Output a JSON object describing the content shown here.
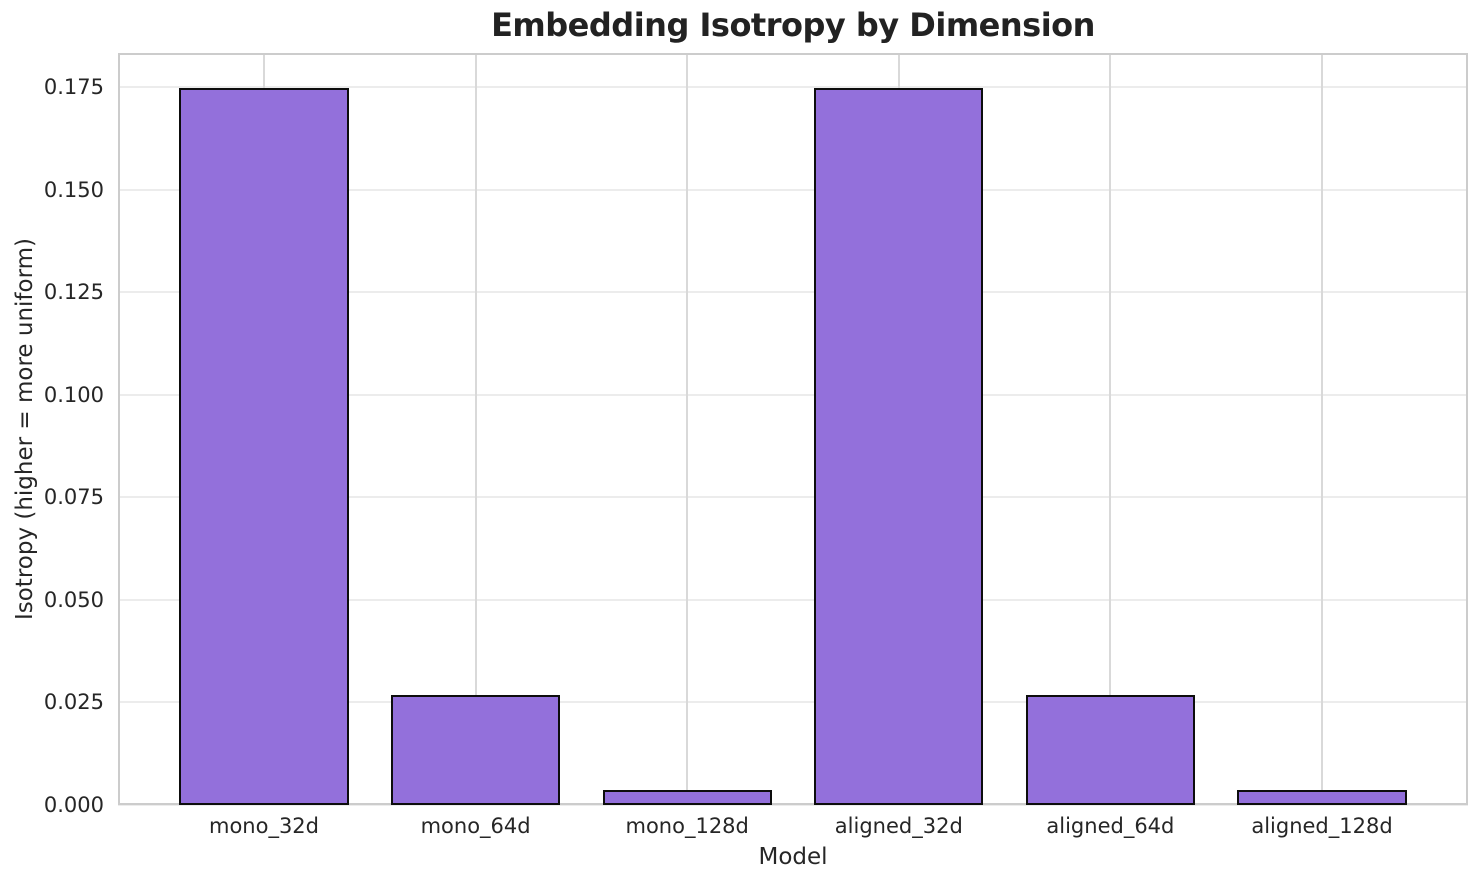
{
  "chart_data": {
    "type": "bar",
    "title": "Embedding Isotropy by Dimension",
    "xlabel": "Model",
    "ylabel": "Isotropy (higher = more uniform)",
    "categories": [
      "mono_32d",
      "mono_64d",
      "mono_128d",
      "aligned_32d",
      "aligned_64d",
      "aligned_128d"
    ],
    "values": [
      0.1747,
      0.0268,
      0.0037,
      0.1747,
      0.0268,
      0.0037
    ],
    "ylim": [
      0,
      0.1833
    ],
    "yticks": [
      0.0,
      0.025,
      0.05,
      0.075,
      0.1,
      0.125,
      0.15,
      0.175
    ],
    "ytick_labels": [
      "0.000",
      "0.025",
      "0.050",
      "0.075",
      "0.100",
      "0.125",
      "0.150",
      "0.175"
    ],
    "grid": true,
    "legend": false,
    "colors": {
      "bar_fill": "#9370DB",
      "bar_edge": "#0d0d0d",
      "h_gridline": "#ececec",
      "v_gridline": "#d9d9d9",
      "spine": "#cccccc",
      "text": "#262626",
      "title_text": "#222222",
      "background": "#ffffff"
    }
  }
}
